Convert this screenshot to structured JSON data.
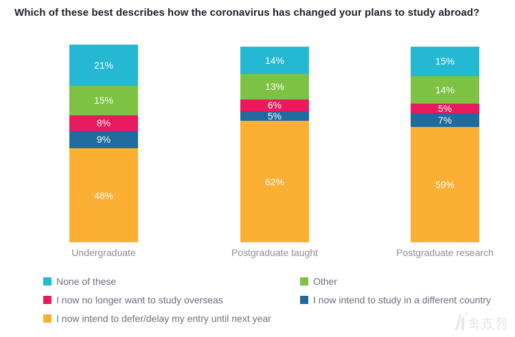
{
  "title": "Which of these best describes how the coronavirus has changed your plans to study abroad?",
  "chart_data": {
    "type": "bar",
    "stacked": true,
    "orientation": "vertical",
    "title": "Which of these best describes how the coronavirus has changed your plans to study abroad?",
    "categories": [
      "Undergraduate",
      "Postgraduate taught",
      "Postgraduate research"
    ],
    "series": [
      {
        "name": "None of these",
        "color": "#24b8d3",
        "values": [
          21,
          14,
          15
        ]
      },
      {
        "name": "Other",
        "color": "#7dc242",
        "values": [
          15,
          13,
          14
        ]
      },
      {
        "name": "I now no longer want to study overseas",
        "color": "#e81a5e",
        "values": [
          8,
          6,
          5
        ]
      },
      {
        "name": "I now intend to study in a different country",
        "color": "#1f6a9e",
        "values": [
          9,
          5,
          7
        ]
      },
      {
        "name": "I now intend to defer/delay my entry until next year",
        "color": "#fbb033",
        "values": [
          48,
          62,
          59
        ]
      }
    ],
    "value_suffix": "%",
    "ylim": [
      0,
      101
    ],
    "grid": false,
    "legend_position": "bottom"
  },
  "watermark": {
    "text": "金吉列"
  }
}
